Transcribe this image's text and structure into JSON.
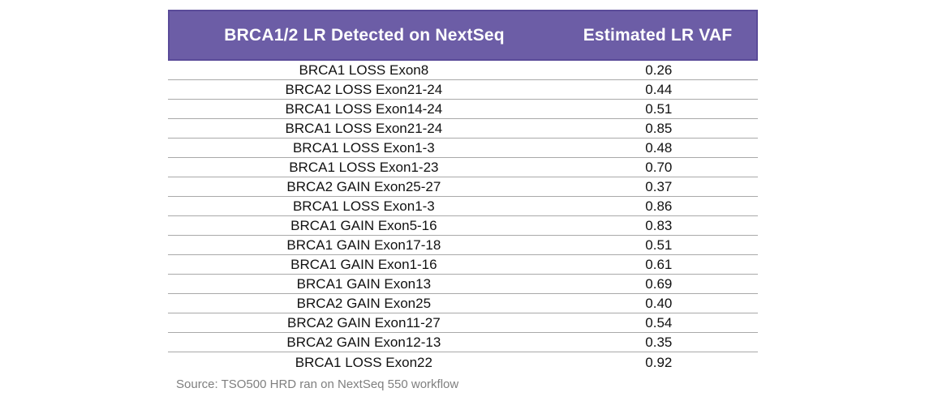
{
  "chart_data": {
    "type": "table",
    "columns": [
      "BRCA1/2 LR Detected on NextSeq",
      "Estimated LR VAF"
    ],
    "rows": [
      [
        "BRCA1 LOSS Exon8",
        "0.26"
      ],
      [
        "BRCA2 LOSS Exon21-24",
        "0.44"
      ],
      [
        "BRCA1 LOSS Exon14-24",
        "0.51"
      ],
      [
        "BRCA1 LOSS Exon21-24",
        "0.85"
      ],
      [
        "BRCA1 LOSS Exon1-3",
        "0.48"
      ],
      [
        "BRCA1 LOSS Exon1-23",
        "0.70"
      ],
      [
        "BRCA2 GAIN Exon25-27",
        "0.37"
      ],
      [
        "BRCA1 LOSS Exon1-3",
        "0.86"
      ],
      [
        "BRCA1 GAIN Exon5-16",
        "0.83"
      ],
      [
        "BRCA1 GAIN Exon17-18",
        "0.51"
      ],
      [
        "BRCA1 GAIN Exon1-16",
        "0.61"
      ],
      [
        "BRCA1 GAIN Exon13",
        "0.69"
      ],
      [
        "BRCA2 GAIN Exon25",
        "0.40"
      ],
      [
        "BRCA2 GAIN Exon11-27",
        "0.54"
      ],
      [
        "BRCA2 GAIN Exon12-13",
        "0.35"
      ],
      [
        "BRCA1 LOSS Exon22",
        "0.92"
      ]
    ],
    "source": "Source: TSO500 HRD ran on NextSeq 550 workflow",
    "colors": {
      "header_bg": "#6C5DA6",
      "header_border": "#5A4B99",
      "header_text": "#FFFFFF",
      "row_divider": "#A9A9A9",
      "row_text": "#111111",
      "source_text": "#7F7F7F"
    },
    "layout": {
      "legend": "none",
      "grid": "horizontal-dividers-only"
    }
  }
}
